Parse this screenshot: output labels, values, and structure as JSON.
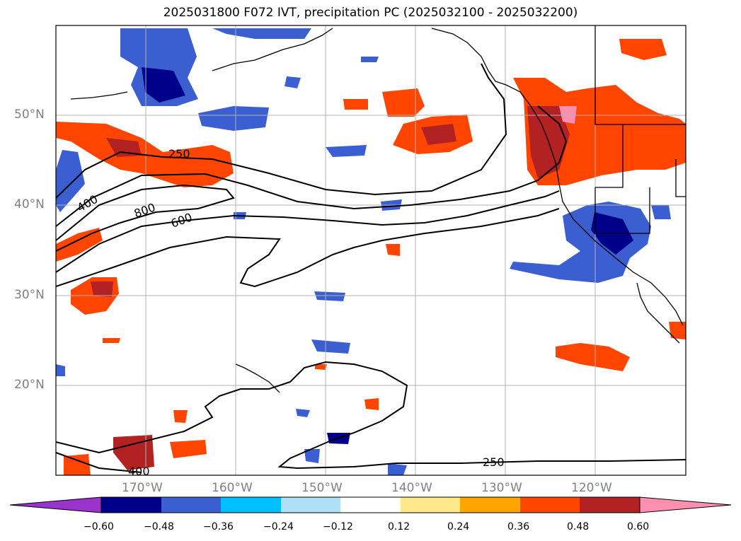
{
  "title": "2025031800 F072 IVT, precipitation PC (2025032100 - 2025032200)",
  "map": {
    "lat_labels": [
      "50°N",
      "40°N",
      "30°N",
      "20°N"
    ],
    "lon_labels": [
      "170°W",
      "160°W",
      "150°W",
      "140°W",
      "130°W",
      "120°W"
    ],
    "contour_labels": [
      "250",
      "400",
      "800",
      "600",
      "250",
      "400"
    ],
    "grid": true
  },
  "colorbar": {
    "ticks": [
      "−0.60",
      "−0.48",
      "−0.36",
      "−0.24",
      "−0.12",
      "0.12",
      "0.24",
      "0.36",
      "0.48",
      "0.60"
    ],
    "colors": [
      "#9933cc",
      "#00008b",
      "#3b5fd0",
      "#00bfff",
      "#b0e0f8",
      "#ffffff",
      "#ffe98a",
      "#ffa500",
      "#ff4500",
      "#b22222",
      "#ff8fb0"
    ]
  }
}
